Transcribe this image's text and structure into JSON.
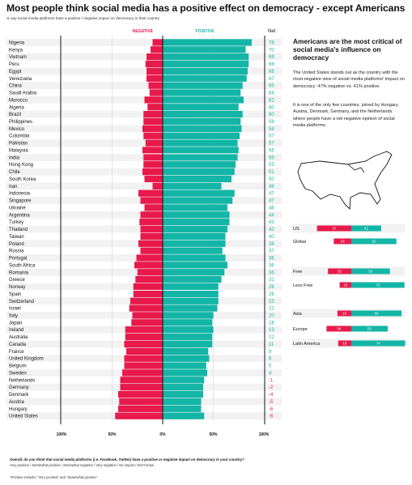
{
  "title": "Most people think social media has a positive effect on democracy - except Americans",
  "subtitle": "% say social media platforms have a positive / negative impact on democracy in their country",
  "side_heading": "Americans are the most critical of social media's influence on democracy",
  "side_paragraph_1": "The United States stands out as the country with the most negative view of social media platforms' impact on democracy: 47% negative vs. 41% positive.",
  "side_paragraph_2": "It is one of the only few countries, joined by Hungary, Austria, Denmark, Germany, and the Netherlands where people have a net negative opinion of social media platforms.",
  "footer_question": "Overall, do you think that social media platforms (i.e. Facebook, Twitter) have a positive or negative impact on democracy in your country?",
  "footer_answers": "Very positive / Somewhat positive / Somewhat negative / Very negative / No impact / Don't know",
  "footer_note": "*Positive includes \"Very positive\" and \"Somewhat positive\".",
  "colors": {
    "negative": "#e8194b",
    "positive": "#13b5a6",
    "net_positive": "#13b5a6",
    "net_negative": "#e8194b"
  },
  "chart_data": {
    "type": "bar",
    "orientation": "diverging-horizontal",
    "legend": {
      "negative": "NEGATIVE",
      "positive": "POSITIVE",
      "net": "Net"
    },
    "x_ticks": [
      "100%",
      "50%",
      "0%",
      "50%",
      "100%"
    ],
    "xlim": [
      -100,
      100
    ],
    "rows": [
      {
        "country": "Nigeria",
        "negative": 10,
        "positive": 88,
        "net": 78
      },
      {
        "country": "Kenya",
        "negative": 12,
        "positive": 82,
        "net": 70
      },
      {
        "country": "Vietnam",
        "negative": 16,
        "positive": 85,
        "net": 69
      },
      {
        "country": "Peru",
        "negative": 17,
        "positive": 85,
        "net": 68
      },
      {
        "country": "Egypt",
        "negative": 16,
        "positive": 84,
        "net": 68
      },
      {
        "country": "Venezuela",
        "negative": 16,
        "positive": 83,
        "net": 67
      },
      {
        "country": "China",
        "negative": 14,
        "positive": 79,
        "net": 65
      },
      {
        "country": "Saudi Arabia",
        "negative": 13,
        "positive": 77,
        "net": 64
      },
      {
        "country": "Morocco",
        "negative": 18,
        "positive": 80,
        "net": 62
      },
      {
        "country": "Algeria",
        "negative": 15,
        "positive": 75,
        "net": 60
      },
      {
        "country": "Brazil",
        "negative": 19,
        "positive": 79,
        "net": 60
      },
      {
        "country": "Philippines",
        "negative": 19,
        "positive": 77,
        "net": 58
      },
      {
        "country": "Mexico",
        "negative": 20,
        "positive": 78,
        "net": 58
      },
      {
        "country": "Colombia",
        "negative": 19,
        "positive": 76,
        "net": 57
      },
      {
        "country": "Pakistan",
        "negative": 17,
        "positive": 74,
        "net": 57
      },
      {
        "country": "Malaysia",
        "negative": 20,
        "positive": 75,
        "net": 55
      },
      {
        "country": "India",
        "negative": 19,
        "positive": 74,
        "net": 55
      },
      {
        "country": "Hong Kong",
        "negative": 19,
        "positive": 72,
        "net": 53
      },
      {
        "country": "Chile",
        "negative": 20,
        "positive": 71,
        "net": 51
      },
      {
        "country": "South Korea",
        "negative": 18,
        "positive": 68,
        "net": 50
      },
      {
        "country": "Iran",
        "negative": 10,
        "positive": 58,
        "net": 48
      },
      {
        "country": "Indonesia",
        "negative": 24,
        "positive": 71,
        "net": 47
      },
      {
        "country": "Singapore",
        "negative": 22,
        "positive": 69,
        "net": 47
      },
      {
        "country": "Ukraine",
        "negative": 18,
        "positive": 64,
        "net": 46
      },
      {
        "country": "Argentina",
        "negative": 22,
        "positive": 66,
        "net": 44
      },
      {
        "country": "Turkey",
        "negative": 23,
        "positive": 66,
        "net": 43
      },
      {
        "country": "Thailand",
        "negative": 22,
        "positive": 64,
        "net": 42
      },
      {
        "country": "Taiwan",
        "negative": 22,
        "positive": 62,
        "net": 40
      },
      {
        "country": "Poland",
        "negative": 24,
        "positive": 62,
        "net": 38
      },
      {
        "country": "Russia",
        "negative": 22,
        "positive": 59,
        "net": 37
      },
      {
        "country": "Portugal",
        "negative": 26,
        "positive": 62,
        "net": 36
      },
      {
        "country": "South Africa",
        "negative": 28,
        "positive": 64,
        "net": 36
      },
      {
        "country": "Romania",
        "negative": 25,
        "positive": 61,
        "net": 36
      },
      {
        "country": "Greece",
        "negative": 27,
        "positive": 58,
        "net": 31
      },
      {
        "country": "Norway",
        "negative": 29,
        "positive": 55,
        "net": 26
      },
      {
        "country": "Spain",
        "negative": 29,
        "positive": 55,
        "net": 26
      },
      {
        "country": "Switzerland",
        "negative": 32,
        "positive": 55,
        "net": 23
      },
      {
        "country": "Israel",
        "negative": 33,
        "positive": 54,
        "net": 21
      },
      {
        "country": "Italy",
        "negative": 30,
        "positive": 50,
        "net": 20
      },
      {
        "country": "Japan",
        "negative": 31,
        "positive": 49,
        "net": 18
      },
      {
        "country": "Ireland",
        "negative": 37,
        "positive": 50,
        "net": 13
      },
      {
        "country": "Australia",
        "negative": 37,
        "positive": 49,
        "net": 12
      },
      {
        "country": "Canada",
        "negative": 38,
        "positive": 49,
        "net": 11
      },
      {
        "country": "France",
        "negative": 36,
        "positive": 45,
        "net": 9
      },
      {
        "country": "United Kingdom",
        "negative": 38,
        "positive": 46,
        "net": 8
      },
      {
        "country": "Belgium",
        "negative": 38,
        "positive": 43,
        "net": 5
      },
      {
        "country": "Sweden",
        "negative": 40,
        "positive": 44,
        "net": 4
      },
      {
        "country": "Netherlands",
        "negative": 42,
        "positive": 41,
        "net": -1
      },
      {
        "country": "Germany",
        "negative": 42,
        "positive": 40,
        "net": -2
      },
      {
        "country": "Denmark",
        "negative": 44,
        "positive": 40,
        "net": -4
      },
      {
        "country": "Austria",
        "negative": 43,
        "positive": 38,
        "net": -5
      },
      {
        "country": "Hungary",
        "negative": 44,
        "positive": 38,
        "net": -6
      },
      {
        "country": "United States",
        "negative": 47,
        "positive": 41,
        "net": -6
      }
    ],
    "comparison": [
      {
        "group": "US",
        "negative": 47,
        "positive": 41,
        "show_labels": true
      },
      {
        "group": "Global",
        "negative": 24,
        "positive": 62,
        "show_labels": true
      },
      {
        "group": "Free",
        "negative": 32,
        "positive": 53,
        "show_labels": true
      },
      {
        "group": "Less Free",
        "negative": 16,
        "positive": 73,
        "show_labels": true
      },
      {
        "group": "Asia",
        "negative": 19,
        "positive": 69,
        "show_labels": true
      },
      {
        "group": "Europe",
        "negative": 34,
        "positive": 50,
        "show_labels": true
      },
      {
        "group": "Latin America",
        "negative": 18,
        "positive": 74,
        "show_labels": true
      }
    ]
  }
}
